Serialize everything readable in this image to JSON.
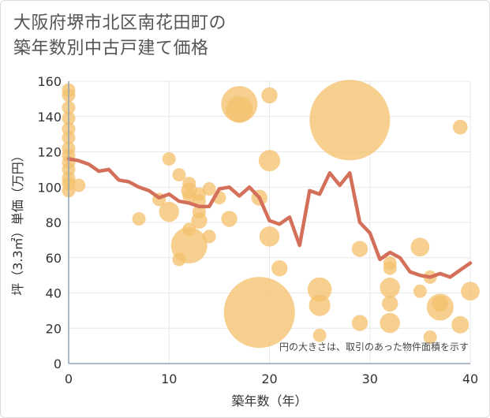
{
  "title_lines": [
    "大阪府堺市北区南花田町の",
    "築年数別中古戸建て価格"
  ],
  "colors": {
    "bubble": "#f5c16f",
    "line": "#d4705a",
    "grid": "#e8e8e8",
    "axis": "#8fa4b3"
  },
  "chart_data": {
    "type": "scatter",
    "title": "大阪府堺市北区南花田町の築年数別中古戸建て価格",
    "xlabel": "築年数（年）",
    "ylabel": "坪（3.3㎡）単価（万円）",
    "note": "円の大きさは、取引のあった物件面積を示す",
    "xlim": [
      0,
      40
    ],
    "ylim": [
      0,
      160
    ],
    "xticks": [
      0,
      10,
      20,
      30,
      40
    ],
    "yticks": [
      0,
      20,
      40,
      60,
      80,
      100,
      120,
      140,
      160
    ],
    "grid": true,
    "series": [
      {
        "type": "bubble",
        "points": [
          {
            "x": 0,
            "y": 155,
            "s": 1
          },
          {
            "x": 0,
            "y": 152,
            "s": 1
          },
          {
            "x": 0,
            "y": 145,
            "s": 1
          },
          {
            "x": 0,
            "y": 139,
            "s": 1
          },
          {
            "x": 0,
            "y": 133,
            "s": 1
          },
          {
            "x": 0,
            "y": 128,
            "s": 1
          },
          {
            "x": 0,
            "y": 122,
            "s": 1
          },
          {
            "x": 0,
            "y": 118,
            "s": 1
          },
          {
            "x": 0,
            "y": 114,
            "s": 1
          },
          {
            "x": 0,
            "y": 110,
            "s": 1
          },
          {
            "x": 0,
            "y": 105,
            "s": 1
          },
          {
            "x": 0,
            "y": 102,
            "s": 1
          },
          {
            "x": 0,
            "y": 98,
            "s": 1
          },
          {
            "x": 1,
            "y": 101,
            "s": 1
          },
          {
            "x": 7,
            "y": 82,
            "s": 1
          },
          {
            "x": 9,
            "y": 93,
            "s": 1
          },
          {
            "x": 10,
            "y": 116,
            "s": 1
          },
          {
            "x": 10,
            "y": 86,
            "s": 1.5
          },
          {
            "x": 11,
            "y": 107,
            "s": 1
          },
          {
            "x": 11,
            "y": 59,
            "s": 1
          },
          {
            "x": 12,
            "y": 102,
            "s": 1
          },
          {
            "x": 12,
            "y": 98,
            "s": 1.2
          },
          {
            "x": 12,
            "y": 95,
            "s": 1
          },
          {
            "x": 12,
            "y": 76,
            "s": 1
          },
          {
            "x": 12,
            "y": 67,
            "s": 2.7
          },
          {
            "x": 13,
            "y": 96,
            "s": 1
          },
          {
            "x": 13,
            "y": 92,
            "s": 1
          },
          {
            "x": 13,
            "y": 86,
            "s": 1
          },
          {
            "x": 13,
            "y": 81,
            "s": 1.2
          },
          {
            "x": 14,
            "y": 99,
            "s": 1
          },
          {
            "x": 14,
            "y": 72,
            "s": 1
          },
          {
            "x": 15,
            "y": 94,
            "s": 1
          },
          {
            "x": 16,
            "y": 82,
            "s": 1.2
          },
          {
            "x": 17,
            "y": 147,
            "s": 2.7
          },
          {
            "x": 17,
            "y": 144,
            "s": 2
          },
          {
            "x": 19,
            "y": 94,
            "s": 1.2
          },
          {
            "x": 19,
            "y": 29,
            "s": 5.3
          },
          {
            "x": 20,
            "y": 152,
            "s": 1.2
          },
          {
            "x": 20,
            "y": 115,
            "s": 1.6
          },
          {
            "x": 20,
            "y": 72,
            "s": 1.5
          },
          {
            "x": 21,
            "y": 54,
            "s": 1.2
          },
          {
            "x": 25,
            "y": 42,
            "s": 1.8
          },
          {
            "x": 25,
            "y": 33,
            "s": 1.6
          },
          {
            "x": 25,
            "y": 16,
            "s": 1
          },
          {
            "x": 28,
            "y": 138,
            "s": 6.0
          },
          {
            "x": 29,
            "y": 65,
            "s": 1.2
          },
          {
            "x": 29,
            "y": 23,
            "s": 1.2
          },
          {
            "x": 32,
            "y": 57,
            "s": 1
          },
          {
            "x": 32,
            "y": 54,
            "s": 1
          },
          {
            "x": 32,
            "y": 43,
            "s": 1.5
          },
          {
            "x": 32,
            "y": 34,
            "s": 1.2
          },
          {
            "x": 32,
            "y": 23,
            "s": 1.5
          },
          {
            "x": 35,
            "y": 66,
            "s": 1.4
          },
          {
            "x": 35,
            "y": 41,
            "s": 1
          },
          {
            "x": 36,
            "y": 49,
            "s": 1
          },
          {
            "x": 36,
            "y": 15,
            "s": 1
          },
          {
            "x": 37,
            "y": 34,
            "s": 1.2
          },
          {
            "x": 37,
            "y": 32,
            "s": 2
          },
          {
            "x": 39,
            "y": 134,
            "s": 1.1
          },
          {
            "x": 39,
            "y": 22,
            "s": 1.3
          },
          {
            "x": 40,
            "y": 41,
            "s": 1.4
          }
        ]
      },
      {
        "type": "line",
        "x": [
          0,
          1,
          2,
          3,
          4,
          5,
          6,
          7,
          8,
          9,
          10,
          11,
          12,
          13,
          14,
          15,
          16,
          17,
          18,
          19,
          20,
          21,
          22,
          23,
          24,
          25,
          26,
          27,
          28,
          29,
          30,
          31,
          32,
          33,
          34,
          35,
          36,
          37,
          38,
          39,
          40
        ],
        "y": [
          116,
          115,
          113,
          109,
          110,
          104,
          103,
          100,
          98,
          94,
          96,
          92,
          91,
          89,
          89,
          99,
          100,
          95,
          100,
          94,
          81,
          79,
          83,
          67,
          98,
          96,
          108,
          101,
          108,
          80,
          74,
          59,
          63,
          60,
          52,
          50,
          49,
          51,
          49,
          53,
          57
        ]
      }
    ]
  }
}
